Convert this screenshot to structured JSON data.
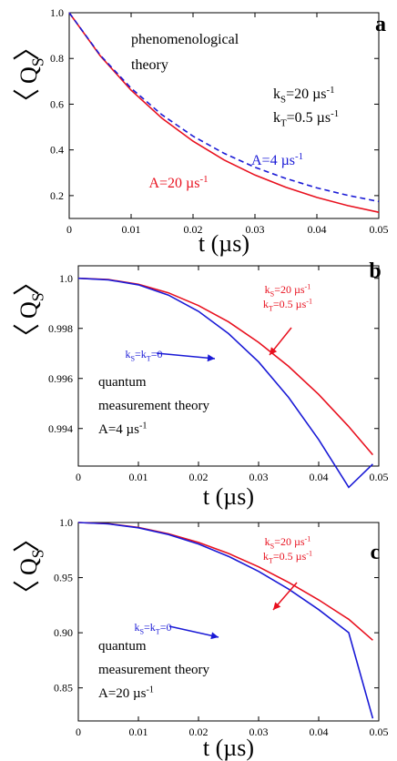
{
  "chart_data": [
    {
      "panel_label": "a",
      "type": "line",
      "xlabel": "t (µs)",
      "ylabel": "〈Q_S〉",
      "xlim": [
        0,
        0.05
      ],
      "ylim": [
        0.1,
        1.0
      ],
      "x_ticks": [
        0,
        0.01,
        0.02,
        0.03,
        0.04,
        0.05
      ],
      "x_tick_labels": [
        "0",
        "0.01",
        "0.02",
        "0.03",
        "0.04",
        "0.05"
      ],
      "y_ticks": [
        0.2,
        0.4,
        0.6,
        0.8,
        1.0
      ],
      "y_tick_labels": [
        "0.2",
        "0.4",
        "0.6",
        "0.8",
        "1.0"
      ],
      "annotations": [
        "phenomenological",
        "theory",
        "k_S=20 µs^-1",
        "k_T=0.5 µs^-1"
      ],
      "series": [
        {
          "name": "A=20 µs^-1",
          "color": "#e8101e",
          "style": "solid",
          "x": [
            0,
            0.005,
            0.01,
            0.015,
            0.02,
            0.025,
            0.03,
            0.035,
            0.04,
            0.045,
            0.05
          ],
          "y": [
            1.0,
            0.812,
            0.661,
            0.538,
            0.438,
            0.356,
            0.29,
            0.236,
            0.192,
            0.156,
            0.127
          ]
        },
        {
          "name": "A=4 µs^-1",
          "color": "#1a1ad6",
          "style": "dashed",
          "x": [
            0,
            0.005,
            0.01,
            0.015,
            0.02,
            0.025,
            0.03,
            0.035,
            0.04,
            0.045,
            0.05
          ],
          "y": [
            1.0,
            0.815,
            0.67,
            0.553,
            0.46,
            0.385,
            0.324,
            0.275,
            0.234,
            0.201,
            0.174
          ]
        }
      ]
    },
    {
      "panel_label": "b",
      "type": "line",
      "xlabel": "t (µs)",
      "ylabel": "〈Q_S〉",
      "xlim": [
        0,
        0.05
      ],
      "ylim": [
        0.9925,
        1.0005
      ],
      "x_ticks": [
        0,
        0.01,
        0.02,
        0.03,
        0.04,
        0.05
      ],
      "x_tick_labels": [
        "0",
        "0.01",
        "0.02",
        "0.03",
        "0.04",
        "0.05"
      ],
      "y_ticks": [
        0.994,
        0.996,
        0.998,
        1.0
      ],
      "y_tick_labels": [
        "0.994",
        "0.996",
        "0.998",
        "1.0"
      ],
      "annotations": [
        "quantum",
        "measurement theory",
        "A=4 µs^-1"
      ],
      "series": [
        {
          "name": "k_S=20 µs^-1, k_T=0.5 µs^-1",
          "color": "#e8101e",
          "style": "solid",
          "x": [
            0,
            0.005,
            0.01,
            0.015,
            0.02,
            0.025,
            0.03,
            0.035,
            0.04,
            0.045,
            0.049
          ],
          "y": [
            1.0,
            0.99995,
            0.99976,
            0.99942,
            0.99891,
            0.99826,
            0.99744,
            0.99648,
            0.99536,
            0.99408,
            0.99295
          ]
        },
        {
          "name": "k_S=k_T=0",
          "color": "#1a1ad6",
          "style": "solid",
          "x": [
            0,
            0.005,
            0.01,
            0.015,
            0.02,
            0.025,
            0.03,
            0.035,
            0.04,
            0.045,
            0.049
          ],
          "y": [
            1.0,
            0.99994,
            0.99974,
            0.99933,
            0.99868,
            0.99779,
            0.99666,
            0.99524,
            0.99356,
            0.99165,
            0.99258
          ]
        }
      ]
    },
    {
      "panel_label": "c",
      "type": "line",
      "xlabel": "t (µs)",
      "ylabel": "〈Q_S〉",
      "xlim": [
        0,
        0.05
      ],
      "ylim": [
        0.82,
        1.0
      ],
      "x_ticks": [
        0,
        0.01,
        0.02,
        0.03,
        0.04,
        0.05
      ],
      "x_tick_labels": [
        "0",
        "0.01",
        "0.02",
        "0.03",
        "0.04",
        "0.05"
      ],
      "y_ticks": [
        0.85,
        0.9,
        0.95,
        1.0
      ],
      "y_tick_labels": [
        "0.85",
        "0.90",
        "0.95",
        "1.0"
      ],
      "annotations": [
        "quantum",
        "measurement theory",
        "A=20 µs^-1"
      ],
      "series": [
        {
          "name": "k_S=20 µs^-1, k_T=0.5 µs^-1",
          "color": "#e8101e",
          "style": "solid",
          "x": [
            0,
            0.005,
            0.01,
            0.015,
            0.02,
            0.025,
            0.03,
            0.035,
            0.04,
            0.045,
            0.049
          ],
          "y": [
            1.0,
            0.9989,
            0.9955,
            0.9898,
            0.9819,
            0.9719,
            0.9598,
            0.9457,
            0.9298,
            0.9122,
            0.8932
          ]
        },
        {
          "name": "k_S=k_T=0",
          "color": "#1a1ad6",
          "style": "solid",
          "x": [
            0,
            0.005,
            0.01,
            0.015,
            0.02,
            0.025,
            0.03,
            0.035,
            0.04,
            0.045,
            0.049
          ],
          "y": [
            1.0,
            0.9988,
            0.9952,
            0.9891,
            0.9805,
            0.9693,
            0.9557,
            0.9396,
            0.921,
            0.9001,
            0.8223
          ]
        }
      ]
    }
  ]
}
